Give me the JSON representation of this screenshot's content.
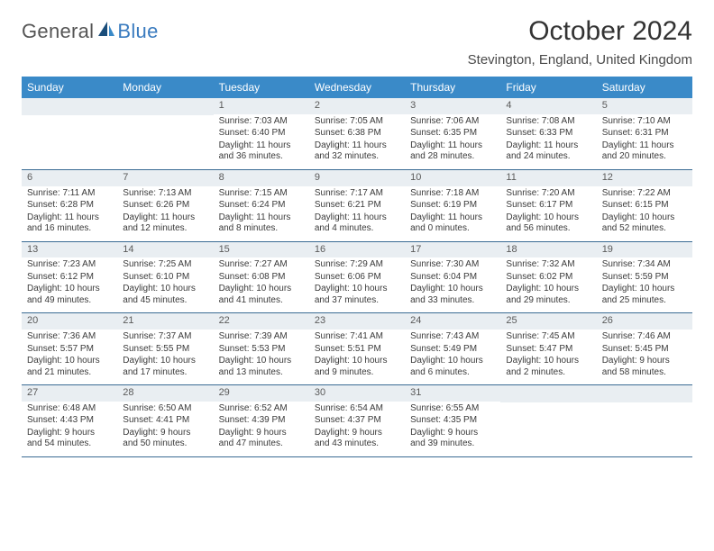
{
  "header": {
    "logo_text_gray": "General",
    "logo_text_blue": "Blue",
    "month_title": "October 2024",
    "location": "Stevington, England, United Kingdom"
  },
  "colors": {
    "header_bar": "#3a8ac8",
    "week_divider": "#3a6b94",
    "daynum_bg": "#e9eef2",
    "logo_blue": "#3a7bbf",
    "logo_dark": "#1a4d7a"
  },
  "dow": [
    "Sunday",
    "Monday",
    "Tuesday",
    "Wednesday",
    "Thursday",
    "Friday",
    "Saturday"
  ],
  "weeks": [
    [
      {
        "day": "",
        "sunrise": "",
        "sunset": "",
        "daylight": ""
      },
      {
        "day": "",
        "sunrise": "",
        "sunset": "",
        "daylight": ""
      },
      {
        "day": "1",
        "sunrise": "Sunrise: 7:03 AM",
        "sunset": "Sunset: 6:40 PM",
        "daylight": "Daylight: 11 hours and 36 minutes."
      },
      {
        "day": "2",
        "sunrise": "Sunrise: 7:05 AM",
        "sunset": "Sunset: 6:38 PM",
        "daylight": "Daylight: 11 hours and 32 minutes."
      },
      {
        "day": "3",
        "sunrise": "Sunrise: 7:06 AM",
        "sunset": "Sunset: 6:35 PM",
        "daylight": "Daylight: 11 hours and 28 minutes."
      },
      {
        "day": "4",
        "sunrise": "Sunrise: 7:08 AM",
        "sunset": "Sunset: 6:33 PM",
        "daylight": "Daylight: 11 hours and 24 minutes."
      },
      {
        "day": "5",
        "sunrise": "Sunrise: 7:10 AM",
        "sunset": "Sunset: 6:31 PM",
        "daylight": "Daylight: 11 hours and 20 minutes."
      }
    ],
    [
      {
        "day": "6",
        "sunrise": "Sunrise: 7:11 AM",
        "sunset": "Sunset: 6:28 PM",
        "daylight": "Daylight: 11 hours and 16 minutes."
      },
      {
        "day": "7",
        "sunrise": "Sunrise: 7:13 AM",
        "sunset": "Sunset: 6:26 PM",
        "daylight": "Daylight: 11 hours and 12 minutes."
      },
      {
        "day": "8",
        "sunrise": "Sunrise: 7:15 AM",
        "sunset": "Sunset: 6:24 PM",
        "daylight": "Daylight: 11 hours and 8 minutes."
      },
      {
        "day": "9",
        "sunrise": "Sunrise: 7:17 AM",
        "sunset": "Sunset: 6:21 PM",
        "daylight": "Daylight: 11 hours and 4 minutes."
      },
      {
        "day": "10",
        "sunrise": "Sunrise: 7:18 AM",
        "sunset": "Sunset: 6:19 PM",
        "daylight": "Daylight: 11 hours and 0 minutes."
      },
      {
        "day": "11",
        "sunrise": "Sunrise: 7:20 AM",
        "sunset": "Sunset: 6:17 PM",
        "daylight": "Daylight: 10 hours and 56 minutes."
      },
      {
        "day": "12",
        "sunrise": "Sunrise: 7:22 AM",
        "sunset": "Sunset: 6:15 PM",
        "daylight": "Daylight: 10 hours and 52 minutes."
      }
    ],
    [
      {
        "day": "13",
        "sunrise": "Sunrise: 7:23 AM",
        "sunset": "Sunset: 6:12 PM",
        "daylight": "Daylight: 10 hours and 49 minutes."
      },
      {
        "day": "14",
        "sunrise": "Sunrise: 7:25 AM",
        "sunset": "Sunset: 6:10 PM",
        "daylight": "Daylight: 10 hours and 45 minutes."
      },
      {
        "day": "15",
        "sunrise": "Sunrise: 7:27 AM",
        "sunset": "Sunset: 6:08 PM",
        "daylight": "Daylight: 10 hours and 41 minutes."
      },
      {
        "day": "16",
        "sunrise": "Sunrise: 7:29 AM",
        "sunset": "Sunset: 6:06 PM",
        "daylight": "Daylight: 10 hours and 37 minutes."
      },
      {
        "day": "17",
        "sunrise": "Sunrise: 7:30 AM",
        "sunset": "Sunset: 6:04 PM",
        "daylight": "Daylight: 10 hours and 33 minutes."
      },
      {
        "day": "18",
        "sunrise": "Sunrise: 7:32 AM",
        "sunset": "Sunset: 6:02 PM",
        "daylight": "Daylight: 10 hours and 29 minutes."
      },
      {
        "day": "19",
        "sunrise": "Sunrise: 7:34 AM",
        "sunset": "Sunset: 5:59 PM",
        "daylight": "Daylight: 10 hours and 25 minutes."
      }
    ],
    [
      {
        "day": "20",
        "sunrise": "Sunrise: 7:36 AM",
        "sunset": "Sunset: 5:57 PM",
        "daylight": "Daylight: 10 hours and 21 minutes."
      },
      {
        "day": "21",
        "sunrise": "Sunrise: 7:37 AM",
        "sunset": "Sunset: 5:55 PM",
        "daylight": "Daylight: 10 hours and 17 minutes."
      },
      {
        "day": "22",
        "sunrise": "Sunrise: 7:39 AM",
        "sunset": "Sunset: 5:53 PM",
        "daylight": "Daylight: 10 hours and 13 minutes."
      },
      {
        "day": "23",
        "sunrise": "Sunrise: 7:41 AM",
        "sunset": "Sunset: 5:51 PM",
        "daylight": "Daylight: 10 hours and 9 minutes."
      },
      {
        "day": "24",
        "sunrise": "Sunrise: 7:43 AM",
        "sunset": "Sunset: 5:49 PM",
        "daylight": "Daylight: 10 hours and 6 minutes."
      },
      {
        "day": "25",
        "sunrise": "Sunrise: 7:45 AM",
        "sunset": "Sunset: 5:47 PM",
        "daylight": "Daylight: 10 hours and 2 minutes."
      },
      {
        "day": "26",
        "sunrise": "Sunrise: 7:46 AM",
        "sunset": "Sunset: 5:45 PM",
        "daylight": "Daylight: 9 hours and 58 minutes."
      }
    ],
    [
      {
        "day": "27",
        "sunrise": "Sunrise: 6:48 AM",
        "sunset": "Sunset: 4:43 PM",
        "daylight": "Daylight: 9 hours and 54 minutes."
      },
      {
        "day": "28",
        "sunrise": "Sunrise: 6:50 AM",
        "sunset": "Sunset: 4:41 PM",
        "daylight": "Daylight: 9 hours and 50 minutes."
      },
      {
        "day": "29",
        "sunrise": "Sunrise: 6:52 AM",
        "sunset": "Sunset: 4:39 PM",
        "daylight": "Daylight: 9 hours and 47 minutes."
      },
      {
        "day": "30",
        "sunrise": "Sunrise: 6:54 AM",
        "sunset": "Sunset: 4:37 PM",
        "daylight": "Daylight: 9 hours and 43 minutes."
      },
      {
        "day": "31",
        "sunrise": "Sunrise: 6:55 AM",
        "sunset": "Sunset: 4:35 PM",
        "daylight": "Daylight: 9 hours and 39 minutes."
      },
      {
        "day": "",
        "sunrise": "",
        "sunset": "",
        "daylight": ""
      },
      {
        "day": "",
        "sunrise": "",
        "sunset": "",
        "daylight": ""
      }
    ]
  ]
}
